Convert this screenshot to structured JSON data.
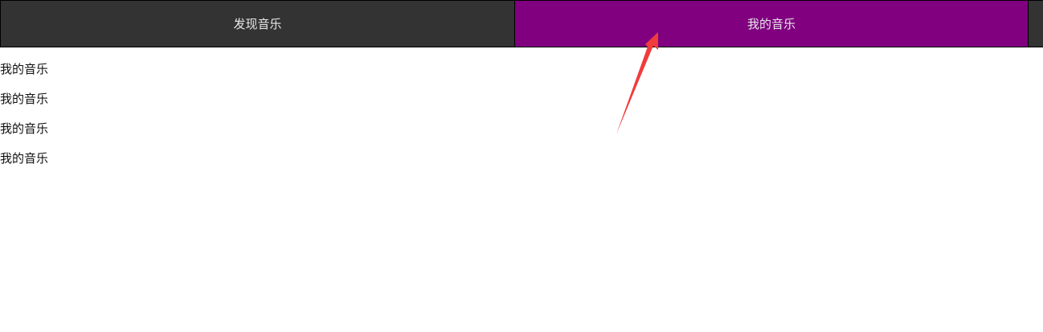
{
  "nav": {
    "tabs": [
      {
        "label": "发现音乐",
        "active": false
      },
      {
        "label": "我的音乐",
        "active": true
      }
    ],
    "colors": {
      "bar": "#333333",
      "active": "#800080",
      "text": "#e8e8e8"
    }
  },
  "content": {
    "items": [
      "我的音乐",
      "我的音乐",
      "我的音乐",
      "我的音乐"
    ]
  },
  "annotation": {
    "icon": "red-arrow-icon",
    "color": "#f03c3c"
  }
}
